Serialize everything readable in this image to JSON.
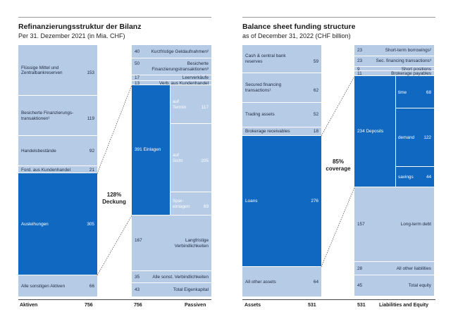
{
  "chart_data": [
    {
      "type": "stacked-bar",
      "title": "Refinanzierungsstruktur der Bilanz",
      "subtitle": "Per 31. Dezember 2021 (in Mia. CHF)",
      "coverage_label": "128%\nDeckung",
      "assets_label": "Aktiven",
      "assets_total": "756",
      "liabilities_label": "Passiven",
      "liabilities_total": "756",
      "assets": [
        {
          "label": "Flüssige Mittel und\nZentralbankreserven",
          "value": 153
        },
        {
          "label": "Besicherte Finanzierungs-\ntransaktionen¹",
          "value": 119
        },
        {
          "label": "Handelsbestände",
          "value": 92
        },
        {
          "label": "Ford. aus Kundenhandel",
          "value": 21
        },
        {
          "label": "Ausleihungen",
          "value": 305
        },
        {
          "label": "Alle sonstigen Aktiven",
          "value": 66
        }
      ],
      "liabilities": [
        {
          "label": "Kurzfristige Geldaufnahmen²",
          "value": 40
        },
        {
          "label": "Besicherte\nFinanzierungstransaktionen³",
          "value": 50
        },
        {
          "label": "Leerverkäufe",
          "value": 17
        },
        {
          "label": "Verb. aus Kundenhandel",
          "value": 13
        },
        {
          "label": "Einlagen",
          "value": 391,
          "sub": [
            {
              "label": "auf\nTermin",
              "value": 117
            },
            {
              "label": "auf\nSicht",
              "value": 205
            },
            {
              "label": "Spar-\neinlagen",
              "value": 69
            }
          ]
        },
        {
          "label": "Langfristige\nVerbindlichkeiten",
          "value": 167
        },
        {
          "label": "Alle sonst. Verbindlichkeiten",
          "value": 35
        },
        {
          "label": "Total Eigenkapital",
          "value": 43
        }
      ]
    },
    {
      "type": "stacked-bar",
      "title": "Balance sheet funding structure",
      "subtitle": "as of December 31, 2022 (CHF billion)",
      "coverage_label": "85%\ncoverage",
      "assets_label": "Assets",
      "assets_total": "531",
      "liabilities_label": "Liabilities and Equity",
      "liabilities_total": "531",
      "assets": [
        {
          "label": "Cash & central bank\nreserves",
          "value": 59
        },
        {
          "label": "Secured financing\ntransactions¹",
          "value": 62
        },
        {
          "label": "Trading assets",
          "value": 52
        },
        {
          "label": "Brokerage receivables",
          "value": 18
        },
        {
          "label": "Loans",
          "value": 276
        },
        {
          "label": "All other assets",
          "value": 64
        }
      ],
      "liabilities": [
        {
          "label": "Short-term borrowings²",
          "value": 23
        },
        {
          "label": "Sec. financing transactions³",
          "value": 23
        },
        {
          "label": "Short positions",
          "value": 9
        },
        {
          "label": "Brokerage payables",
          "value": 11
        },
        {
          "label": "Deposits",
          "value": 234,
          "sub": [
            {
              "label": "time",
              "value": 68
            },
            {
              "label": "demand",
              "value": 122
            },
            {
              "label": "savings",
              "value": 44
            }
          ]
        },
        {
          "label": "Long-term debt",
          "value": 157
        },
        {
          "label": "All other liabilities",
          "value": 28
        },
        {
          "label": "Total equity",
          "value": 45
        }
      ]
    }
  ]
}
